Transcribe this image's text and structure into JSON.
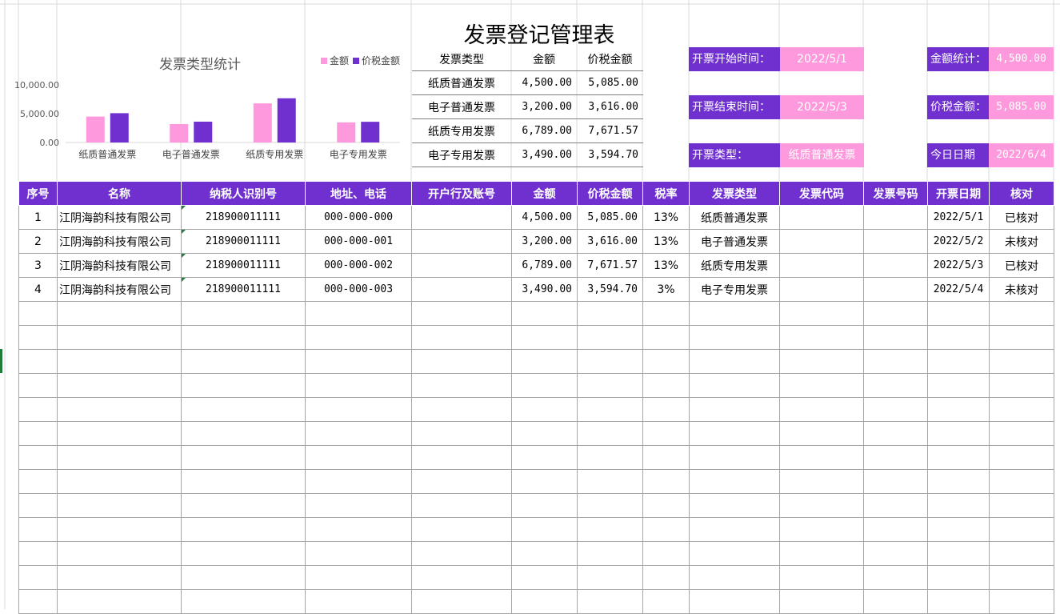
{
  "title": "发票登记管理表",
  "chart_data": {
    "type": "bar",
    "title": "发票类型统计",
    "categories": [
      "纸质普通发票",
      "电子普通发票",
      "纸质专用发票",
      "电子专用发票"
    ],
    "series": [
      {
        "name": "金额",
        "values": [
          4500.0,
          3200.0,
          6789.0,
          3490.0
        ],
        "color": "#ff99dd"
      },
      {
        "name": "价税金额",
        "values": [
          5085.0,
          3616.0,
          7671.57,
          3594.7
        ],
        "color": "#7030d0"
      }
    ],
    "yticks": [
      "10,000.00",
      "5,000.00",
      "0.00"
    ],
    "ylim": [
      0,
      10000
    ],
    "legend": "top-right",
    "grid": false
  },
  "summary": {
    "headers": [
      "发票类型",
      "金额",
      "价税金额"
    ],
    "rows": [
      [
        "纸质普通发票",
        "4,500.00",
        "5,085.00"
      ],
      [
        "电子普通发票",
        "3,200.00",
        "3,616.00"
      ],
      [
        "纸质专用发票",
        "6,789.00",
        "7,671.57"
      ],
      [
        "电子专用发票",
        "3,490.00",
        "3,594.70"
      ]
    ]
  },
  "filters": {
    "start_label": "开票开始时间：",
    "start_value": "2022/5/1",
    "end_label": "开票结束时间：",
    "end_value": "2022/5/3",
    "type_label": "开票类型：",
    "type_value": "纸质普通发票"
  },
  "stats": {
    "amount_label": "金额统计：",
    "amount_value": "4,500.00",
    "tax_label": "价税金额：",
    "tax_value": "5,085.00",
    "today_label": "今日日期",
    "today_value": "2022/6/4"
  },
  "table": {
    "headers": [
      "序号",
      "名称",
      "纳税人识别号",
      "地址、电话",
      "开户行及账号",
      "金额",
      "价税金额",
      "税率",
      "发票类型",
      "发票代码",
      "发票号码",
      "开票日期",
      "核对"
    ],
    "rows": [
      [
        "1",
        "江阴海韵科技有限公司",
        "218900011111",
        "000-000-000",
        "",
        "4,500.00",
        "5,085.00",
        "13%",
        "纸质普通发票",
        "",
        "",
        "2022/5/1",
        "已核对"
      ],
      [
        "2",
        "江阴海韵科技有限公司",
        "218900011111",
        "000-000-001",
        "",
        "3,200.00",
        "3,616.00",
        "13%",
        "电子普通发票",
        "",
        "",
        "2022/5/2",
        "未核对"
      ],
      [
        "3",
        "江阴海韵科技有限公司",
        "218900011111",
        "000-000-002",
        "",
        "6,789.00",
        "7,671.57",
        "13%",
        "纸质专用发票",
        "",
        "",
        "2022/5/3",
        "已核对"
      ],
      [
        "4",
        "江阴海韵科技有限公司",
        "218900011111",
        "000-000-003",
        "",
        "3,490.00",
        "3,594.70",
        "3%",
        "电子专用发票",
        "",
        "",
        "2022/5/4",
        "未核对"
      ]
    ],
    "empty_rows": 13
  },
  "colors": {
    "header_bg": "#7030d0",
    "accent_pink": "#ff99dd",
    "grid": "#d9d9d9"
  }
}
